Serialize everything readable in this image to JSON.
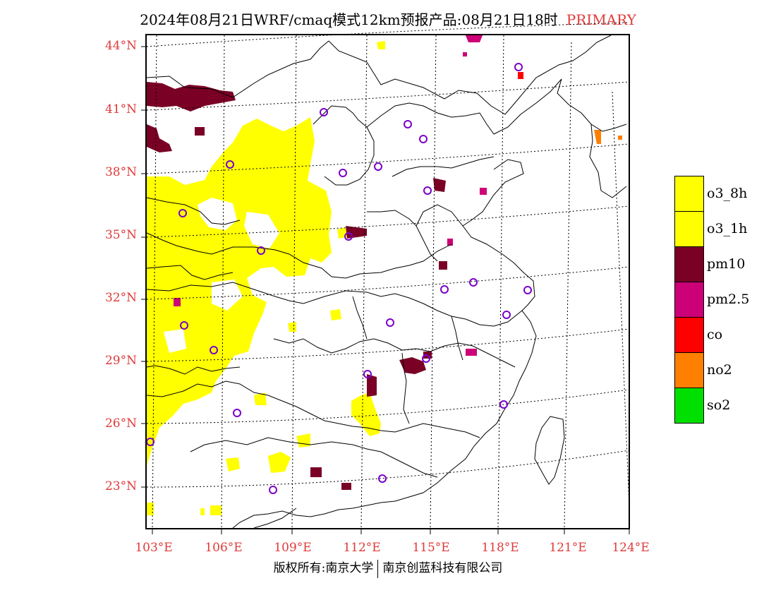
{
  "title": {
    "main": "2024年08月21日WRF/cmaq模式12km预报产品:08月21日18时",
    "highlight": "PRIMARY"
  },
  "lat_labels": [
    "44°N",
    "41°N",
    "38°N",
    "35°N",
    "32°N",
    "29°N",
    "26°N",
    "23°N"
  ],
  "lon_labels": [
    "103°E",
    "106°E",
    "109°E",
    "112°E",
    "115°E",
    "118°E",
    "121°E",
    "124°E"
  ],
  "footer": {
    "left": "版权所有:南京大学",
    "right": "南京创蓝科技有限公司"
  },
  "legend": [
    {
      "label": "o3_8h",
      "color": "#ffff00"
    },
    {
      "label": "o3_1h",
      "color": "#ffff00"
    },
    {
      "label": "pm10",
      "color": "#7a0026"
    },
    {
      "label": "pm2.5",
      "color": "#cc0077"
    },
    {
      "label": "co",
      "color": "#ff0000"
    },
    {
      "label": "no2",
      "color": "#ff7f00"
    },
    {
      "label": "so2",
      "color": "#00e000"
    }
  ]
}
